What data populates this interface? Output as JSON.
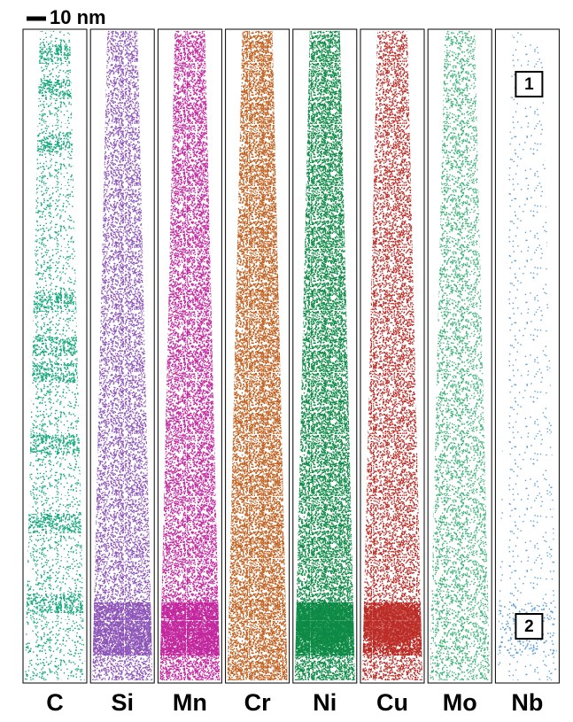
{
  "scale_bar": {
    "label": "10 nm"
  },
  "panels": [
    {
      "label": "C",
      "color": "#1aa97e"
    },
    {
      "label": "Si",
      "color": "#8e55b8"
    },
    {
      "label": "Mn",
      "color": "#c2279e"
    },
    {
      "label": "Cr",
      "color": "#c0601f"
    },
    {
      "label": "Ni",
      "color": "#0d8a45"
    },
    {
      "label": "Cu",
      "color": "#bb2b25"
    },
    {
      "label": "Mo",
      "color": "#3fb37a"
    },
    {
      "label": "Nb",
      "color": "#5b9fd8"
    }
  ],
  "regions": [
    {
      "label": "1"
    },
    {
      "label": "2"
    }
  ]
}
